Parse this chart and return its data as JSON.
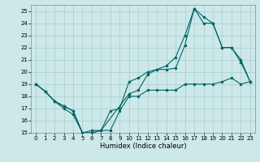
{
  "xlabel": "Humidex (Indice chaleur)",
  "ylabel": "",
  "xlim": [
    -0.5,
    23.5
  ],
  "ylim": [
    15,
    25.5
  ],
  "yticks": [
    15,
    16,
    17,
    18,
    19,
    20,
    21,
    22,
    23,
    24,
    25
  ],
  "xticks": [
    0,
    1,
    2,
    3,
    4,
    5,
    6,
    7,
    8,
    9,
    10,
    11,
    12,
    13,
    14,
    15,
    16,
    17,
    18,
    19,
    20,
    21,
    22,
    23
  ],
  "bg_color": "#cce8e8",
  "grid_color": "#aacccc",
  "line_color": "#006666",
  "line1": {
    "x": [
      0,
      1,
      2,
      3,
      4,
      5,
      6,
      7,
      8,
      9,
      10,
      11,
      12,
      13,
      14,
      15,
      16,
      17,
      18,
      19,
      20,
      21,
      22,
      23
    ],
    "y": [
      19,
      18.4,
      17.6,
      17.0,
      16.5,
      15.0,
      15.0,
      15.2,
      15.2,
      16.8,
      18.0,
      18.0,
      18.5,
      18.5,
      18.5,
      18.5,
      19.0,
      19.0,
      19.0,
      19.0,
      19.2,
      19.5,
      19.0,
      19.2
    ]
  },
  "line2": {
    "x": [
      0,
      1,
      2,
      3,
      4,
      5,
      6,
      7,
      8,
      9,
      10,
      11,
      12,
      13,
      14,
      15,
      16,
      17,
      18,
      19,
      20,
      21,
      22,
      23
    ],
    "y": [
      19,
      18.4,
      17.6,
      17.2,
      16.8,
      15.0,
      15.0,
      15.2,
      16.8,
      17.0,
      19.2,
      19.5,
      20.0,
      20.2,
      20.2,
      20.3,
      22.2,
      25.2,
      24.0,
      24.0,
      22.0,
      22.0,
      20.8,
      19.2
    ]
  },
  "line3": {
    "x": [
      0,
      1,
      2,
      3,
      4,
      5,
      6,
      7,
      10,
      11,
      12,
      13,
      14,
      15,
      16,
      17,
      18,
      19,
      20,
      21,
      22,
      23
    ],
    "y": [
      19,
      18.4,
      17.6,
      17.2,
      16.8,
      15.0,
      15.2,
      15.2,
      18.2,
      18.5,
      19.8,
      20.2,
      20.5,
      21.2,
      23.0,
      25.2,
      24.5,
      24.0,
      22.0,
      22.0,
      21.0,
      19.2
    ]
  }
}
